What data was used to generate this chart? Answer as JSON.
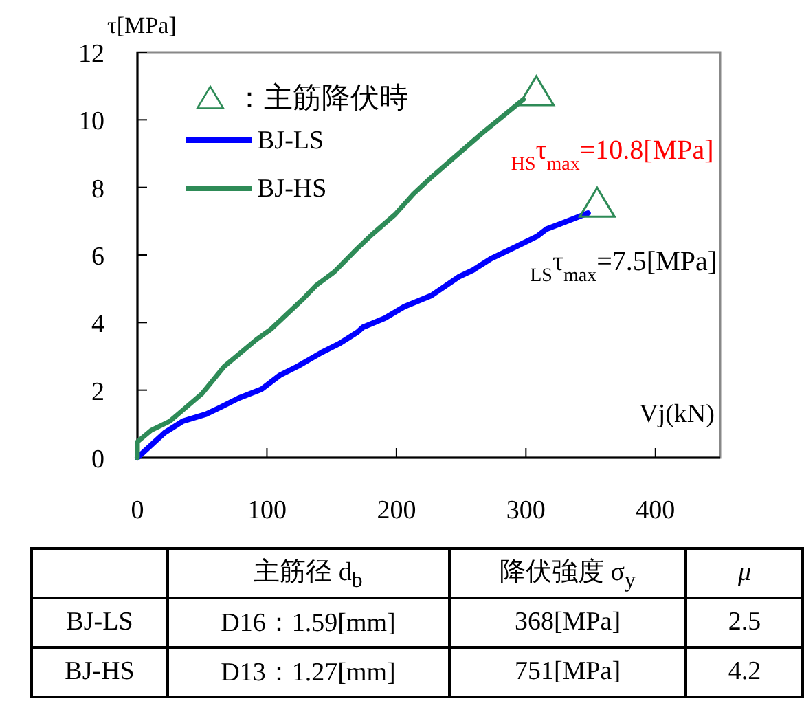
{
  "chart_data": {
    "type": "line",
    "xlabel": "Vj(kN)",
    "ylabel": "τ[MPa]",
    "xlim": [
      0,
      450
    ],
    "xticks": [
      0,
      100,
      200,
      300,
      400
    ],
    "ylim": [
      0,
      12
    ],
    "yticks": [
      0,
      2,
      4,
      6,
      8,
      10,
      12
    ],
    "grid": false,
    "legend": "top left",
    "series": [
      {
        "name": "：主筋降伏時",
        "type": "scatter",
        "marker": "triangle",
        "color": "#2e8b57",
        "x": [
          308,
          355
        ],
        "values": [
          10.8,
          7.5
        ]
      },
      {
        "name": "BJ-LS",
        "color": "#0000ff",
        "x": [
          0,
          21,
          35,
          53,
          64,
          78,
          96,
          110,
          124,
          142,
          156,
          170,
          174,
          191,
          206,
          227,
          248,
          259,
          273,
          291,
          309,
          316,
          330,
          348
        ],
        "values": [
          0,
          0.74,
          1.08,
          1.29,
          1.49,
          1.76,
          2.03,
          2.44,
          2.71,
          3.11,
          3.38,
          3.72,
          3.86,
          4.13,
          4.47,
          4.8,
          5.35,
          5.55,
          5.89,
          6.22,
          6.56,
          6.77,
          6.97,
          7.24
        ]
      },
      {
        "name": "BJ-HS",
        "color": "#2e8b57",
        "x": [
          0,
          0,
          10.6,
          25,
          50,
          67,
          92,
          103,
          128,
          138,
          152,
          170,
          181,
          199,
          213,
          227,
          248,
          266,
          298
        ],
        "values": [
          0,
          0.47,
          0.81,
          1.08,
          1.9,
          2.7,
          3.5,
          3.8,
          4.7,
          5.1,
          5.5,
          6.2,
          6.6,
          7.2,
          7.8,
          8.3,
          9.0,
          9.6,
          10.6
        ]
      }
    ],
    "annotations": [
      {
        "text": "$_{HS}$τ$_{max}$=10.8[MPa]",
        "x": 308,
        "y": 10.8
      },
      {
        "text": "$_{LS}$τ$_{max}$=7.5[MPa]",
        "x": 355,
        "y": 7.5
      },
      "主筋径 d$_{b}$",
      "降伏強度 σ$_{y}$",
      "μ",
      "BJ-LS",
      "D16：1.59[mm]",
      "368[MPa]",
      "2.5",
      "BJ-HS",
      "D13：1.27[mm]",
      "751[MPa]",
      "4.2"
    ]
  }
}
